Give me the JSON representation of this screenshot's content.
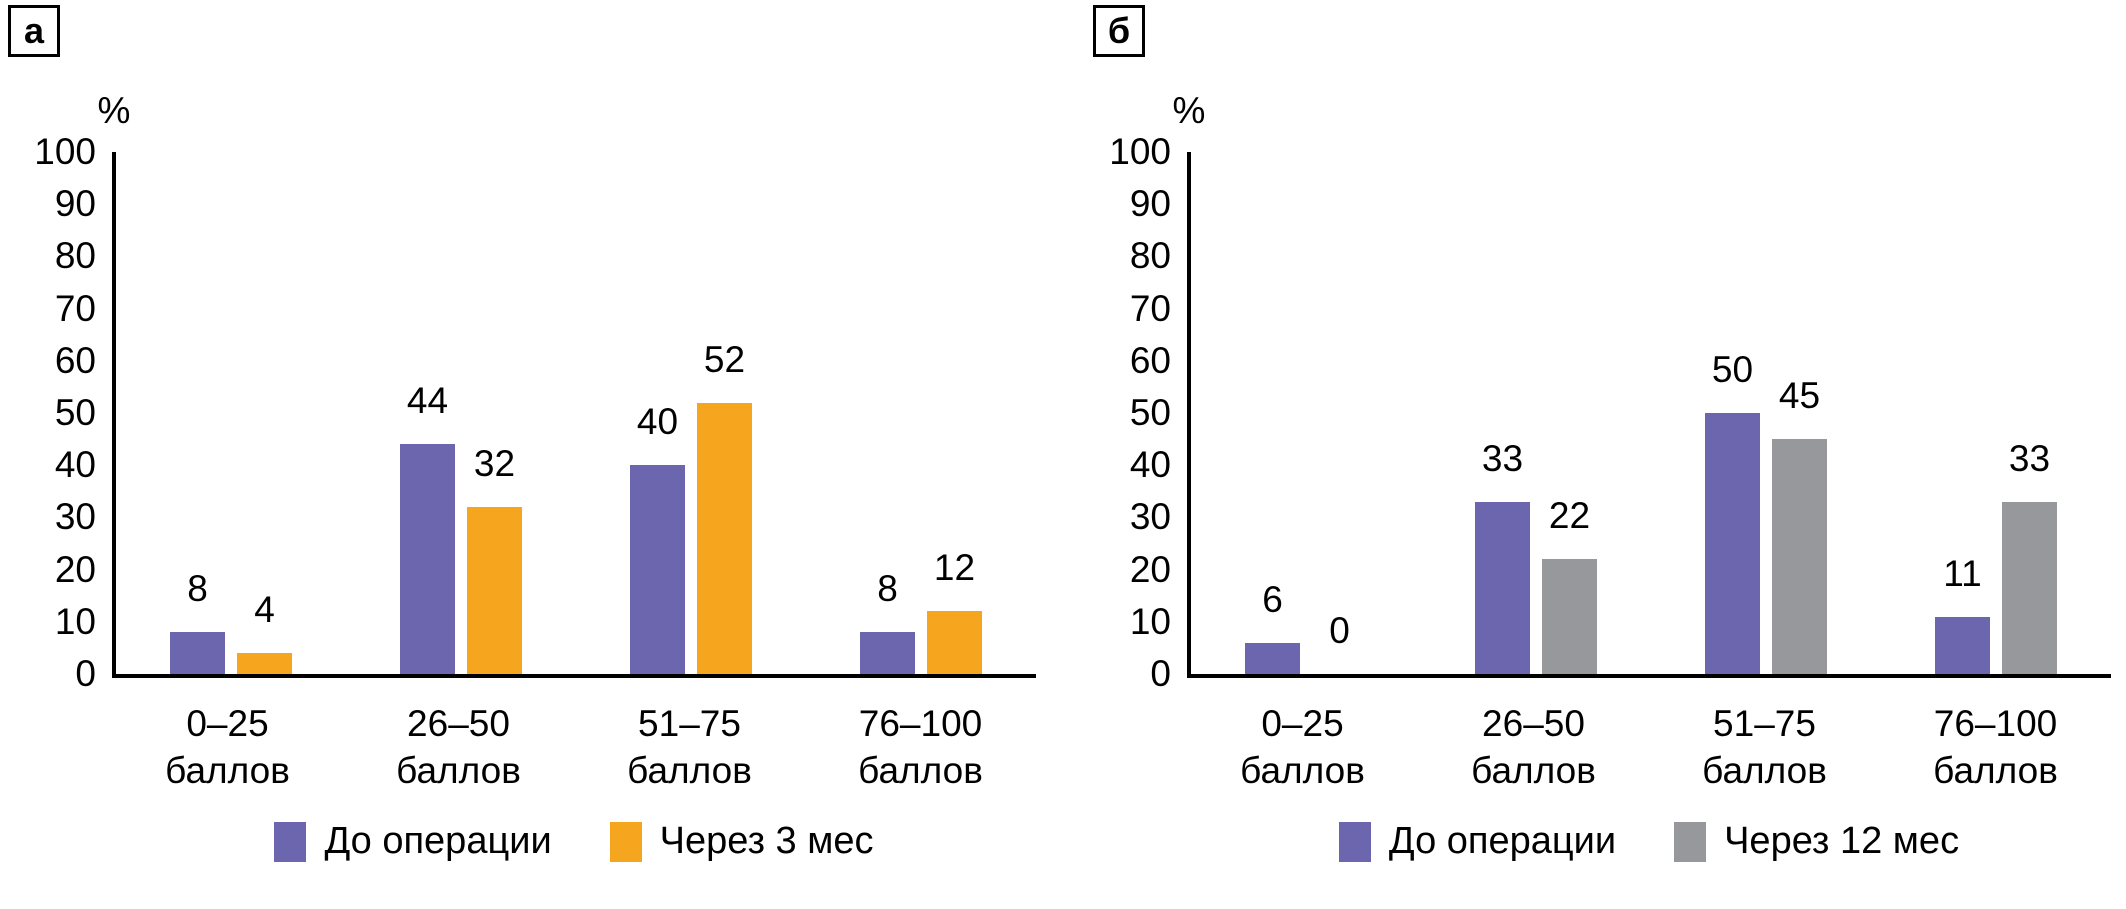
{
  "figure_background": "#ffffff",
  "axis_color": "#000000",
  "chart_data": [
    {
      "type": "bar",
      "panel_label": "а",
      "y_unit": "%",
      "ylim": [
        0,
        100
      ],
      "y_ticks": [
        100,
        90,
        80,
        70,
        60,
        50,
        40,
        30,
        20,
        10,
        0
      ],
      "grid": false,
      "legend_position": "bottom",
      "categories": [
        [
          "0–25",
          "баллов"
        ],
        [
          "26–50",
          "баллов"
        ],
        [
          "51–75",
          "баллов"
        ],
        [
          "76–100",
          "баллов"
        ]
      ],
      "series": [
        {
          "name": "До операции",
          "color": "#6C66AE",
          "values": [
            8,
            44,
            40,
            8
          ]
        },
        {
          "name": "Через 3 мес",
          "color": "#F6A51F",
          "values": [
            4,
            32,
            52,
            12
          ]
        }
      ]
    },
    {
      "type": "bar",
      "panel_label": "б",
      "y_unit": "%",
      "ylim": [
        0,
        100
      ],
      "y_ticks": [
        100,
        90,
        80,
        70,
        60,
        50,
        40,
        30,
        20,
        10,
        0
      ],
      "grid": false,
      "legend_position": "bottom",
      "categories": [
        [
          "0–25",
          "баллов"
        ],
        [
          "26–50",
          "баллов"
        ],
        [
          "51–75",
          "баллов"
        ],
        [
          "76–100",
          "баллов"
        ]
      ],
      "series": [
        {
          "name": "До операции",
          "color": "#6C66AE",
          "values": [
            6,
            33,
            50,
            11
          ]
        },
        {
          "name": "Через 12 мес",
          "color": "#97989C",
          "values": [
            0,
            22,
            45,
            33
          ]
        }
      ]
    }
  ]
}
